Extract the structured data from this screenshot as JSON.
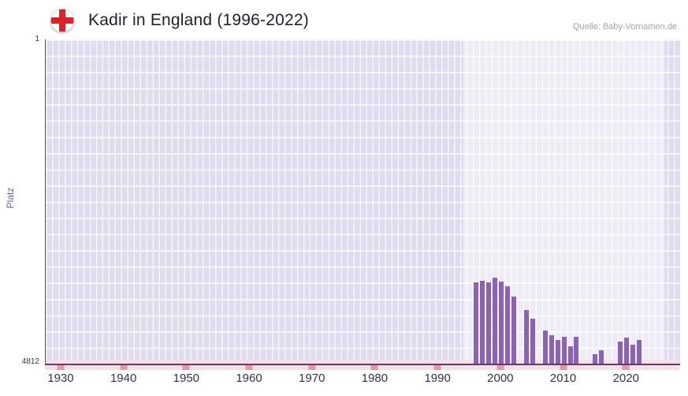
{
  "colors": {
    "title-color": "#23202e",
    "source-color": "#a3a3a3",
    "tick-color": "#372e52",
    "ylabel-color": "#6e5f9e",
    "plot-bg": "#e0dcef",
    "grid-line": "rgba(255,255,255,0.7)",
    "axis-line": "#52446e",
    "bar-color": "#8a63b8",
    "strip-bg": "#f9dee6",
    "strip-mark": "#ec96a3",
    "flag-red": "#d8232a"
  },
  "header": {
    "title": "Kadir in England (1996-2022)",
    "source": "Quelle: Baby-Vornamen.de",
    "flag_icon": "england-flag-icon"
  },
  "chart_data": {
    "type": "bar",
    "title": "Kadir in England (1996-2022)",
    "xlabel": "",
    "ylabel": "Platz",
    "y_axis": {
      "top_tick": "1",
      "bottom_tick": "4812",
      "min": 1,
      "max": 4812,
      "inverted": true
    },
    "x_axis": {
      "domain_start": 1927.5,
      "domain_end": 2028.5,
      "ticks": [
        1930,
        1940,
        1950,
        1960,
        1970,
        1980,
        1990,
        2000,
        2010,
        2020
      ]
    },
    "highlight_band": {
      "start": 1994,
      "end": 2026
    },
    "grid": true,
    "legend": false,
    "points": [
      {
        "year": 1996,
        "rank": 3610
      },
      {
        "year": 1997,
        "rank": 3585
      },
      {
        "year": 1998,
        "rank": 3610
      },
      {
        "year": 1999,
        "rank": 3540
      },
      {
        "year": 2000,
        "rank": 3590
      },
      {
        "year": 2001,
        "rank": 3670
      },
      {
        "year": 2002,
        "rank": 3820
      },
      {
        "year": 2003,
        "rank": null
      },
      {
        "year": 2004,
        "rank": 4010
      },
      {
        "year": 2005,
        "rank": 4150
      },
      {
        "year": 2006,
        "rank": null
      },
      {
        "year": 2007,
        "rank": 4320
      },
      {
        "year": 2008,
        "rank": 4390
      },
      {
        "year": 2009,
        "rank": 4460
      },
      {
        "year": 2010,
        "rank": 4410
      },
      {
        "year": 2011,
        "rank": 4550
      },
      {
        "year": 2012,
        "rank": 4410
      },
      {
        "year": 2013,
        "rank": null
      },
      {
        "year": 2014,
        "rank": null
      },
      {
        "year": 2015,
        "rank": 4670
      },
      {
        "year": 2016,
        "rank": 4610
      },
      {
        "year": 2017,
        "rank": null
      },
      {
        "year": 2018,
        "rank": null
      },
      {
        "year": 2019,
        "rank": 4480
      },
      {
        "year": 2020,
        "rank": 4430
      },
      {
        "year": 2021,
        "rank": 4530
      },
      {
        "year": 2022,
        "rank": 4460
      }
    ]
  }
}
